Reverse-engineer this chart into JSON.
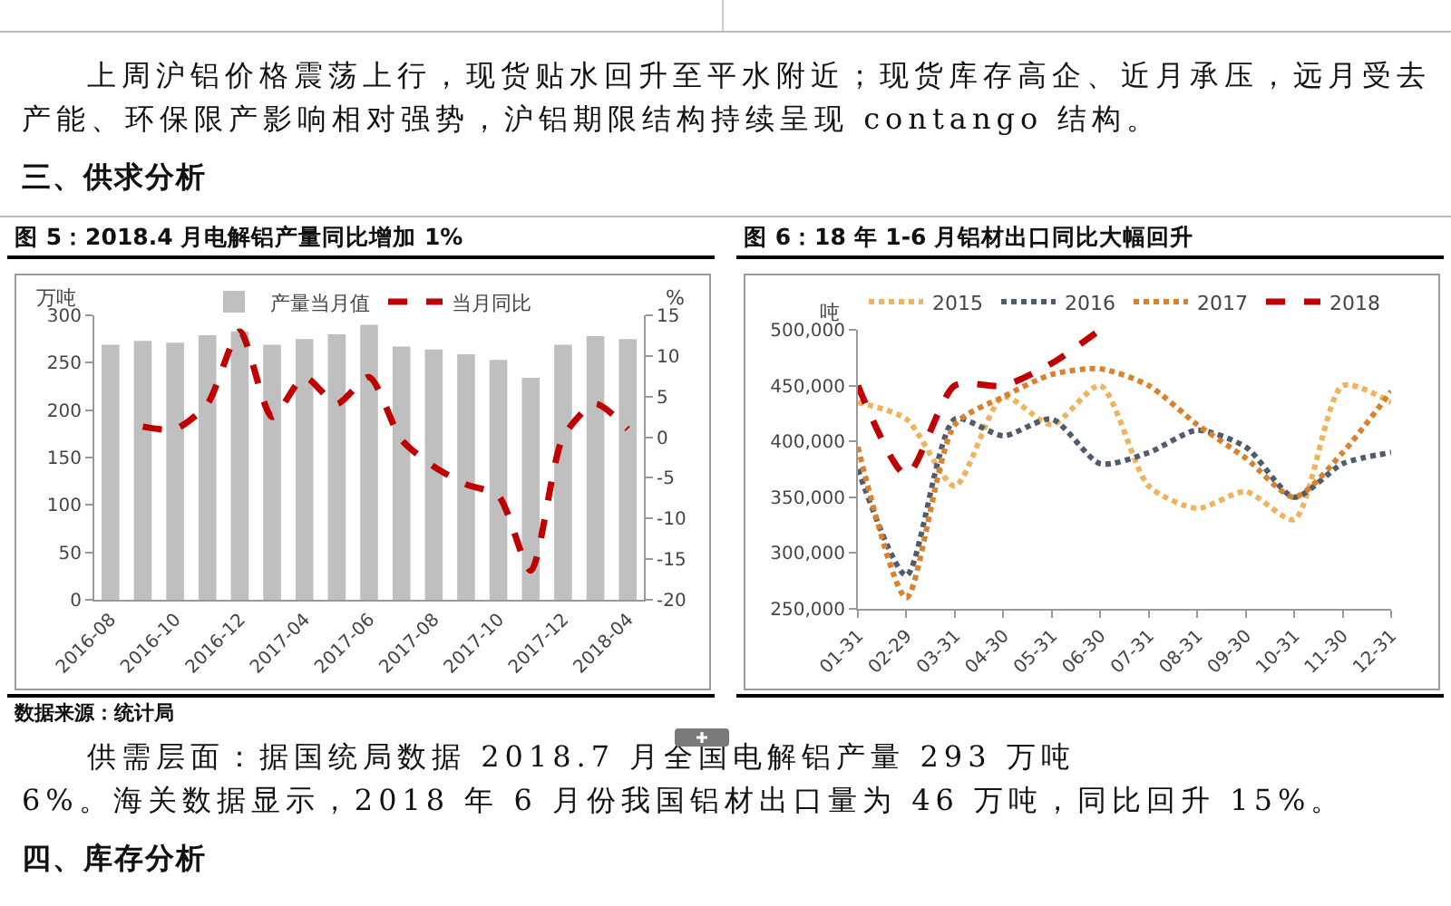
{
  "chart_data": [
    {
      "type": "other",
      "annotations": [
        "上周沪铝价格震荡上行，现货贴水回升至平水附近；现货库存高企、近月承压，远月受去产能、环保限产影响相对强势，沪铝期限结构持续呈现 contango 结构。",
        "三、供求分析"
      ]
    },
    {
      "type": "bar",
      "title": "图 5：2018.4 月电解铝产量同比增加 1%",
      "ylabel": "万吨",
      "y2label": "%",
      "categories": [
        "2016-08",
        null,
        "2016-10",
        null,
        "2016-12",
        null,
        "2017-04",
        null,
        "2017-06",
        null,
        "2017-08",
        null,
        "2017-10",
        null,
        "2017-12",
        null,
        "2018-04"
      ],
      "series": [
        {
          "type": "bar",
          "name": "产量当月值",
          "color": "#bfbfbf",
          "values": [
            269,
            273,
            271,
            279,
            283,
            269,
            275,
            280,
            290,
            267,
            264,
            259,
            253,
            234,
            269,
            278,
            275
          ]
        },
        {
          "type": "line",
          "name": "当月同比",
          "color": "#c00000",
          "axis": "y2",
          "line_style": "dashed",
          "values": [
            null,
            1.3,
            1.0,
            4.1,
            13.0,
            2.5,
            7.4,
            4.1,
            7.4,
            -0.3,
            -3.6,
            -5.8,
            -7.2,
            -16.4,
            0,
            4.1,
            1
          ]
        }
      ],
      "ylim": [
        0,
        300
      ],
      "yticks": [
        0,
        50,
        100,
        150,
        200,
        250,
        300
      ],
      "y2lim": [
        -20,
        15
      ],
      "y2ticks": [
        -20,
        -15,
        -10,
        -5,
        0,
        5,
        10,
        15
      ],
      "legend": "top",
      "annotations": [
        "数据来源：统计局"
      ]
    },
    {
      "type": "line",
      "title": "图 6：18 年 1-6 月铝材出口同比大幅回升",
      "ylabel": "吨",
      "categories": [
        "01-31",
        "02-29",
        "03-31",
        "04-30",
        "05-31",
        "06-30",
        "07-31",
        "08-31",
        "09-30",
        "10-31",
        "11-30",
        "12-31"
      ],
      "series": [
        {
          "name": "2015",
          "color": "#f0b25c",
          "line_style": "dotted",
          "values": [
            435000,
            420000,
            360000,
            440000,
            415000,
            450000,
            360000,
            340000,
            355000,
            330000,
            450000,
            435000
          ]
        },
        {
          "name": "2016",
          "color": "#4f5b6e",
          "line_style": "dotted",
          "values": [
            375000,
            280000,
            420000,
            405000,
            420000,
            380000,
            390000,
            410000,
            395000,
            350000,
            380000,
            390000
          ]
        },
        {
          "name": "2017",
          "color": "#d9822b",
          "line_style": "dotted",
          "values": [
            395000,
            260000,
            415000,
            440000,
            460000,
            465000,
            450000,
            415000,
            385000,
            350000,
            390000,
            445000
          ]
        },
        {
          "name": "2018",
          "color": "#c00000",
          "line_style": "dashed",
          "values": [
            450000,
            370000,
            450000,
            450000,
            470000,
            500000,
            null,
            null,
            null,
            null,
            null,
            null
          ]
        }
      ],
      "ylim": [
        250000,
        500000
      ],
      "yticks": [
        {
          "value": 250000,
          "label": "250,000"
        },
        {
          "value": 300000,
          "label": "300,000"
        },
        {
          "value": 350000,
          "label": "350,000"
        },
        {
          "value": 400000,
          "label": "400,000"
        },
        {
          "value": 450000,
          "label": "450,000"
        },
        {
          "value": 500000,
          "label": "500,000"
        }
      ],
      "legend": "top"
    },
    {
      "type": "other",
      "annotations": [
        "供需层面：据国统局数据 2018.7 月全国电解铝产量 293 万吨",
        "6%。海关数据显示，2018 年 6 月份我国铝材出口量为 46 万吨，同比回升 15%。",
        "四、库存分析"
      ]
    }
  ]
}
